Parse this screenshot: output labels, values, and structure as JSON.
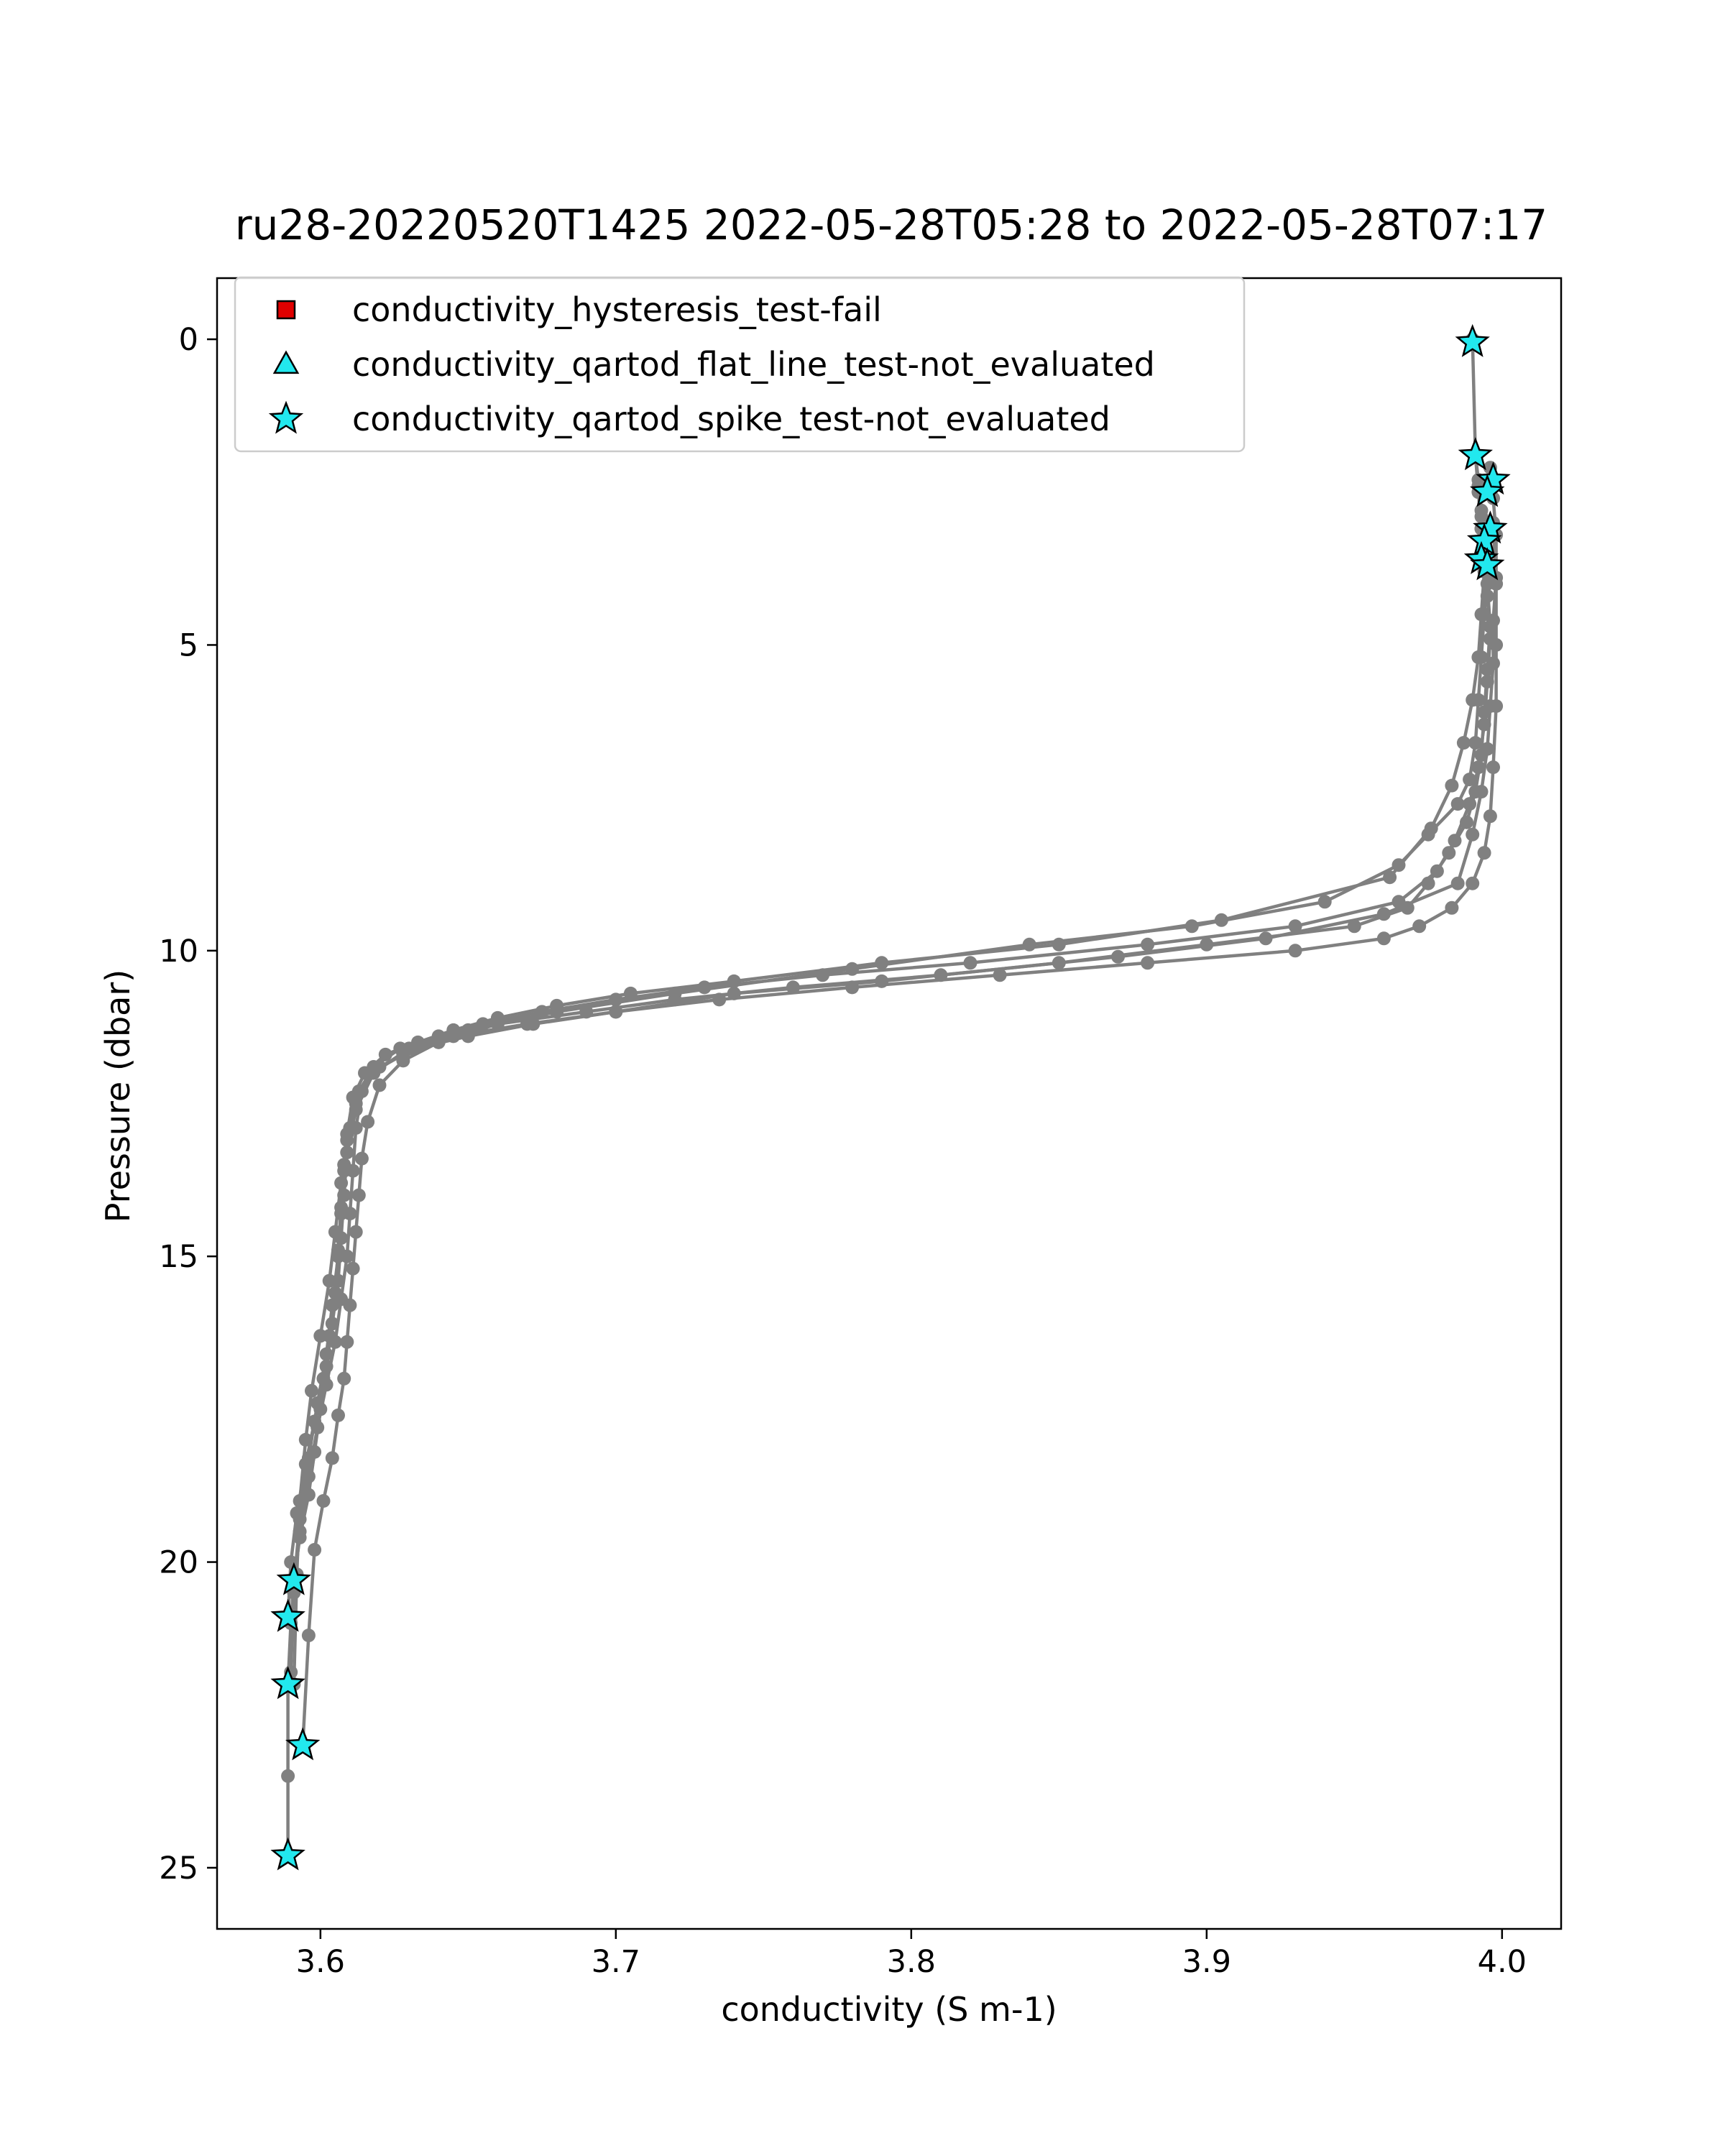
{
  "chart_data": {
    "type": "scatter",
    "title": "ru28-20220520T1425 2022-05-28T05:28 to 2022-05-28T07:17",
    "xlabel": "conductivity (S m-1)",
    "ylabel": "Pressure (dbar)",
    "xlim": [
      3.565,
      4.02
    ],
    "ylim": [
      26.0,
      -1.0
    ],
    "y_inverted": true,
    "grid": false,
    "legend_position": "upper-left",
    "x_ticks": [
      3.6,
      3.7,
      3.8,
      3.9,
      4.0
    ],
    "x_tick_labels": [
      "3.6",
      "3.7",
      "3.8",
      "3.9",
      "4.0"
    ],
    "y_ticks": [
      0,
      5,
      10,
      15,
      20,
      25
    ],
    "y_tick_labels": [
      "0",
      "5",
      "10",
      "15",
      "20",
      "25"
    ],
    "colors": {
      "profile_line": "#808080",
      "hysteresis_fail": "#e00000",
      "not_evaluated": "#22e8ee",
      "marker_edge": "#000000",
      "axes": "#000000",
      "legend_frame": "#cccccc"
    },
    "legend": [
      {
        "label": "conductivity_hysteresis_test-fail",
        "marker": "square",
        "color": "#e00000"
      },
      {
        "label": "conductivity_qartod_flat_line_test-not_evaluated",
        "marker": "triangle",
        "color": "#22e8ee"
      },
      {
        "label": "conductivity_qartod_spike_test-not_evaluated",
        "marker": "star",
        "color": "#22e8ee"
      }
    ],
    "series": [
      {
        "role": "profile",
        "color": "#808080",
        "x": [
          3.99,
          3.991,
          3.992,
          3.993,
          3.994,
          3.995,
          3.994,
          3.993,
          3.992,
          3.991,
          3.989,
          3.985,
          3.975,
          3.965,
          3.94,
          3.895,
          3.84,
          3.78,
          3.72,
          3.68,
          3.65,
          3.63,
          3.618,
          3.612,
          3.609,
          3.608,
          3.607,
          3.606,
          3.604,
          3.602,
          3.6,
          3.598,
          3.596,
          3.593,
          3.591,
          3.59,
          3.589,
          3.589,
          3.589
        ],
        "y": [
          0.0,
          1.9,
          2.3,
          2.8,
          3.3,
          3.8,
          4.5,
          5.2,
          5.9,
          6.6,
          7.2,
          7.6,
          8.1,
          8.6,
          9.2,
          9.6,
          9.9,
          10.3,
          10.7,
          11.0,
          11.3,
          11.6,
          12.0,
          12.6,
          13.3,
          14.0,
          14.7,
          15.4,
          16.1,
          16.8,
          17.5,
          18.2,
          18.9,
          19.6,
          20.3,
          21.0,
          22.0,
          23.5,
          24.8
        ]
      },
      {
        "role": "profile",
        "color": "#808080",
        "x": [
          3.996,
          3.997,
          3.998,
          3.998,
          3.997,
          3.997,
          3.996,
          3.995,
          3.993,
          3.99,
          3.985,
          3.96,
          3.92,
          3.87,
          3.81,
          3.76,
          3.72,
          3.69,
          3.66,
          3.64,
          3.628,
          3.62,
          3.616,
          3.614,
          3.613,
          3.612,
          3.611,
          3.61,
          3.609,
          3.608,
          3.606,
          3.604,
          3.601,
          3.598,
          3.596,
          3.594
        ],
        "y": [
          2.1,
          2.6,
          3.2,
          3.9,
          4.6,
          5.3,
          6.0,
          6.7,
          7.4,
          8.1,
          8.9,
          9.4,
          9.8,
          10.1,
          10.4,
          10.6,
          10.8,
          11.0,
          11.2,
          11.5,
          11.8,
          12.2,
          12.8,
          13.4,
          14.0,
          14.6,
          15.2,
          15.8,
          16.4,
          17.0,
          17.6,
          18.3,
          19.0,
          19.8,
          21.2,
          23.0
        ]
      },
      {
        "role": "profile",
        "color": "#808080",
        "x": [
          3.992,
          3.993,
          3.994,
          3.995,
          3.996,
          3.995,
          3.994,
          3.993,
          3.991,
          3.988,
          3.982,
          3.975,
          3.968,
          3.95,
          3.9,
          3.85,
          3.79,
          3.74,
          3.7,
          3.67,
          3.645,
          3.628,
          3.617,
          3.612,
          3.609,
          3.607,
          3.605,
          3.603,
          3.6,
          3.597,
          3.595,
          3.593,
          3.592,
          3.591
        ],
        "y": [
          2.4,
          2.9,
          3.4,
          4.0,
          4.7,
          5.4,
          6.1,
          6.8,
          7.4,
          7.9,
          8.4,
          8.9,
          9.3,
          9.6,
          9.9,
          10.2,
          10.5,
          10.7,
          11.0,
          11.2,
          11.4,
          11.7,
          12.0,
          12.5,
          13.1,
          13.8,
          14.6,
          15.4,
          16.3,
          17.2,
          18.0,
          19.0,
          20.2,
          22.0
        ]
      },
      {
        "role": "profile",
        "color": "#808080",
        "x": [
          3.993,
          3.994,
          3.995,
          3.996,
          3.995,
          3.994,
          3.992,
          3.989,
          3.984,
          3.978,
          3.965,
          3.93,
          3.88,
          3.82,
          3.77,
          3.73,
          3.7,
          3.675,
          3.655,
          3.64,
          3.627,
          3.618,
          3.613,
          3.61,
          3.608,
          3.607,
          3.606,
          3.605,
          3.603,
          3.601,
          3.598,
          3.595,
          3.592,
          3.59,
          3.589
        ],
        "y": [
          3.1,
          3.6,
          4.2,
          4.9,
          5.6,
          6.3,
          7.0,
          7.6,
          8.2,
          8.7,
          9.2,
          9.6,
          9.9,
          10.2,
          10.4,
          10.6,
          10.8,
          11.0,
          11.2,
          11.4,
          11.6,
          11.9,
          12.3,
          12.9,
          13.5,
          14.2,
          14.9,
          15.6,
          16.3,
          17.0,
          17.7,
          18.4,
          19.2,
          20.0,
          20.9
        ]
      },
      {
        "role": "profile",
        "color": "#808080",
        "x": [
          3.991,
          3.992,
          3.993,
          3.994,
          3.993,
          3.992,
          3.99,
          3.987,
          3.983,
          3.976,
          3.962,
          3.905,
          3.85,
          3.79,
          3.74,
          3.705,
          3.68,
          3.66,
          3.645,
          3.633,
          3.622,
          3.615,
          3.611,
          3.609,
          3.608,
          3.607,
          3.606,
          3.604,
          3.602,
          3.599,
          3.596,
          3.593,
          3.591,
          3.59
        ],
        "y": [
          1.9,
          2.5,
          3.1,
          3.8,
          4.5,
          5.2,
          5.9,
          6.6,
          7.3,
          8.0,
          8.8,
          9.5,
          9.9,
          10.2,
          10.5,
          10.7,
          10.9,
          11.1,
          11.3,
          11.5,
          11.7,
          12.0,
          12.4,
          13.0,
          13.6,
          14.3,
          15.0,
          15.8,
          16.6,
          17.4,
          18.3,
          19.3,
          20.4,
          21.8
        ]
      },
      {
        "role": "profile",
        "color": "#808080",
        "x": [
          3.997,
          3.998,
          3.998,
          3.998,
          3.997,
          3.996,
          3.994,
          3.99,
          3.983,
          3.972,
          3.96,
          3.93,
          3.88,
          3.83,
          3.78,
          3.735,
          3.7,
          3.672,
          3.65,
          3.632,
          3.62,
          3.614,
          3.612,
          3.611,
          3.61,
          3.609,
          3.607,
          3.605,
          3.602,
          3.599,
          3.596,
          3.593,
          3.591
        ],
        "y": [
          3.0,
          4.0,
          5.0,
          6.0,
          7.0,
          7.8,
          8.4,
          8.9,
          9.3,
          9.6,
          9.8,
          10.0,
          10.2,
          10.4,
          10.6,
          10.8,
          11.0,
          11.2,
          11.4,
          11.6,
          11.9,
          12.3,
          12.9,
          13.6,
          14.3,
          15.0,
          15.7,
          16.4,
          17.1,
          17.8,
          18.6,
          19.5,
          20.5
        ]
      }
    ],
    "flag_series": [
      {
        "name": "conductivity_hysteresis_test-fail",
        "marker": "square",
        "color": "#e00000",
        "x": [],
        "y": []
      },
      {
        "name": "conductivity_qartod_flat_line_test-not_evaluated",
        "marker": "triangle",
        "color": "#22e8ee",
        "x": [],
        "y": []
      },
      {
        "name": "conductivity_qartod_spike_test-not_evaluated",
        "marker": "star",
        "color": "#22e8ee",
        "x": [
          3.99,
          3.991,
          3.997,
          3.995,
          3.996,
          3.994,
          3.993,
          3.995,
          3.591,
          3.589,
          3.589,
          3.594,
          3.589
        ],
        "y": [
          0.05,
          1.9,
          2.3,
          2.5,
          3.1,
          3.3,
          3.6,
          3.7,
          20.3,
          20.9,
          22.0,
          23.0,
          24.8
        ]
      }
    ]
  }
}
